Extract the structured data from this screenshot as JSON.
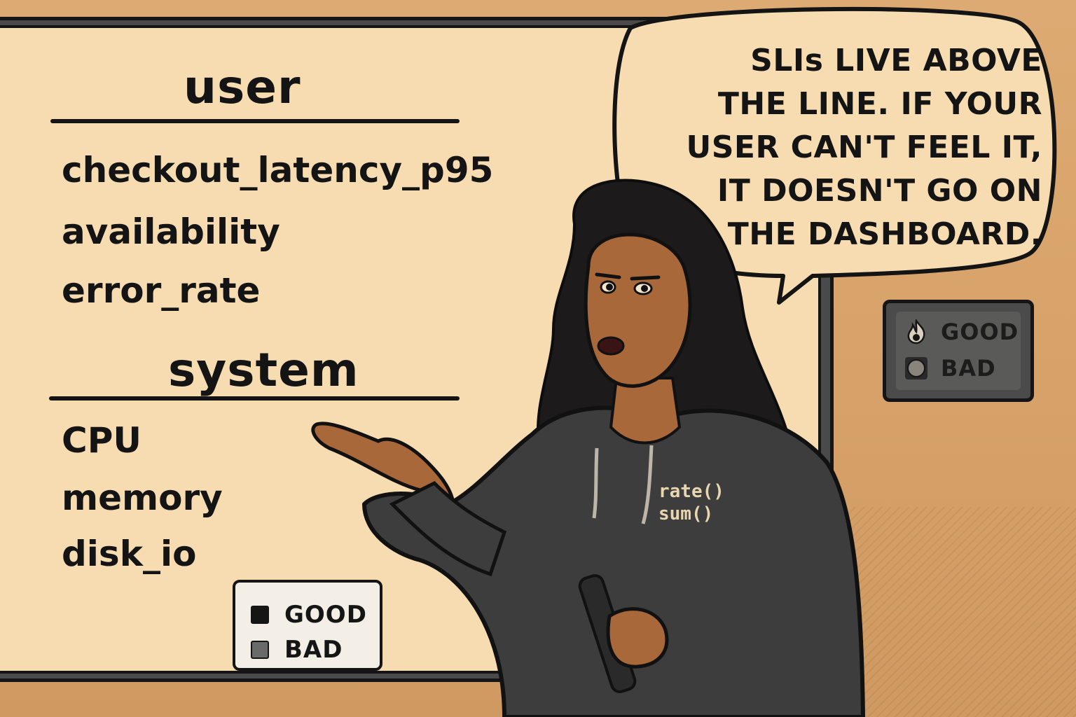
{
  "board": {
    "user_heading": "user",
    "user_metrics": [
      "checkout_latency_p95",
      "availability",
      "error_rate"
    ],
    "system_heading": "system",
    "system_metrics": [
      "CPU",
      "memory",
      "disk_io"
    ]
  },
  "legend_board": {
    "items": [
      {
        "label": "GOOD",
        "color": "#151515"
      },
      {
        "label": "BAD",
        "color": "#6a6a6a"
      }
    ]
  },
  "legend_wall": {
    "items": [
      {
        "label": "GOOD",
        "color": "#cfc6b4",
        "icon": "flame-icon"
      },
      {
        "label": "BAD",
        "color": "#8a857c",
        "icon": "circle-icon"
      }
    ]
  },
  "speech_bubble": {
    "lines": [
      "SLIs LIVE ABOVE",
      "THE LINE. IF YOUR",
      "USER CAN'T FEEL IT,",
      "IT DOESN'T GO ON",
      "THE DASHBOARD."
    ]
  },
  "hoodie": {
    "lines": [
      "rate()",
      "sum()"
    ]
  },
  "colors": {
    "wall": "#d9a66f",
    "board": "#f6dcb0",
    "hoodie": "#3d3d3d",
    "skin": "#a8683a",
    "hair": "#1c1a1a"
  }
}
